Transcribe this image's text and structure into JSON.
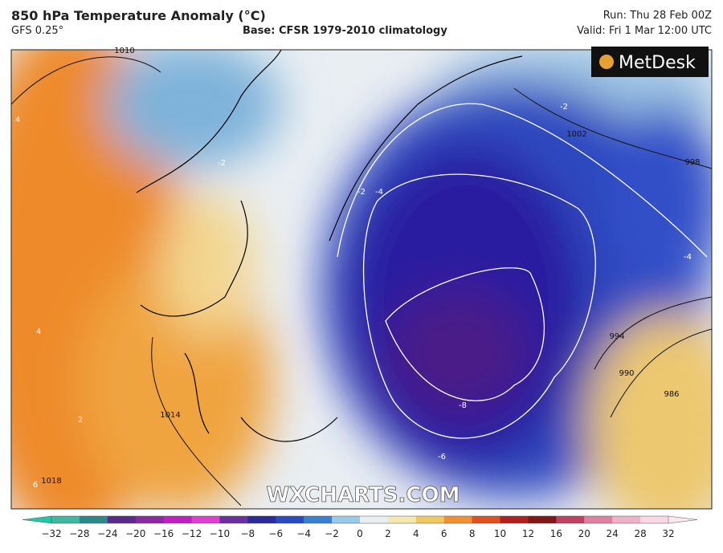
{
  "header": {
    "title": "850 hPa Temperature Anomaly (°C)",
    "model": "GFS 0.25°",
    "base": "Base: CFSR 1979-2010 climatology",
    "run": "Run: Thu 28 Feb 00Z",
    "valid": "Valid: Fri 1 Mar 12:00 UTC"
  },
  "logo": "MetDesk",
  "watermark": "WXCHARTS.COM",
  "map": {
    "labels": [
      "1010",
      "1002",
      "998",
      "994",
      "990",
      "986",
      "1014",
      "1018",
      "-2",
      "-2",
      "-2",
      "-4",
      "-4",
      "-6",
      "-8",
      "4",
      "4",
      "2",
      "6"
    ]
  },
  "colorbar": {
    "labels": [
      "−32",
      "−28",
      "−24",
      "−20",
      "−16",
      "−12",
      "−10",
      "−8",
      "−6",
      "−4",
      "−2",
      "0",
      "2",
      "4",
      "6",
      "8",
      "10",
      "12",
      "16",
      "20",
      "24",
      "28",
      "32"
    ]
  }
}
